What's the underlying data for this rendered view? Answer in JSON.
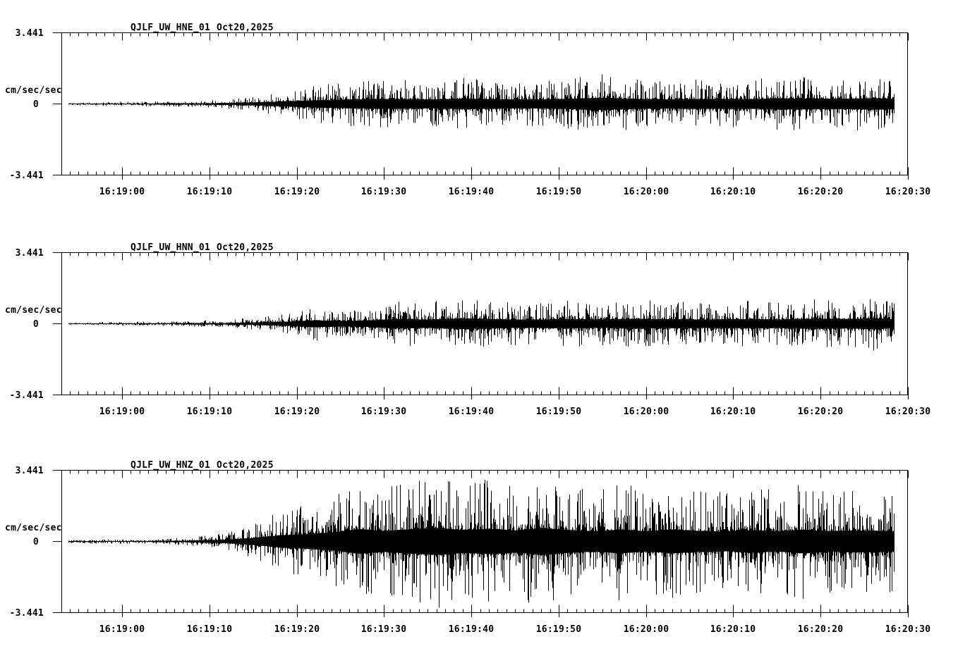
{
  "page": {
    "background": "#ffffff",
    "trace_color": "#000000",
    "text_color": "#000000"
  },
  "chart_data": {
    "type": "line",
    "kind": "seismogram-acceleration",
    "title_date": "Oct20,2025",
    "y_units": "cm/sec/sec",
    "y_max_label": "3.441",
    "y_zero_label": "0",
    "y_min_label": "-3.441",
    "ylim": [
      -3.441,
      3.441
    ],
    "grid": false,
    "x_axis": {
      "start_time": "16:18:53",
      "end_time": "16:20:30",
      "window_seconds": 96.95,
      "first_label_offset_s": 6.95,
      "major_step_s": 10,
      "minor_step_s": 1,
      "labels": [
        "16:19:00",
        "16:19:10",
        "16:19:20",
        "16:19:30",
        "16:19:40",
        "16:19:50",
        "16:20:00",
        "16:20:10",
        "16:20:20",
        "16:20:30"
      ]
    },
    "trace_window": {
      "start_s": 0.8,
      "end_s": 95.3
    },
    "panels": [
      {
        "station": "QJLF_UW_HNE_01",
        "date": "Oct20,2025",
        "envelope_cm_s2": [
          [
            0.8,
            0.07
          ],
          [
            7,
            0.1
          ],
          [
            14,
            0.15
          ],
          [
            18,
            0.22
          ],
          [
            22,
            0.38
          ],
          [
            26,
            0.65
          ],
          [
            30,
            0.95
          ],
          [
            34,
            1.15
          ],
          [
            38,
            1.2
          ],
          [
            42,
            1.1
          ],
          [
            46,
            1.3
          ],
          [
            50,
            1.15
          ],
          [
            54,
            1.1
          ],
          [
            58,
            1.25
          ],
          [
            62,
            1.5
          ],
          [
            66,
            1.2
          ],
          [
            70,
            1.15
          ],
          [
            74,
            1.25
          ],
          [
            78,
            1.15
          ],
          [
            82,
            1.35
          ],
          [
            86,
            1.3
          ],
          [
            90,
            1.25
          ],
          [
            93,
            1.4
          ],
          [
            95.3,
            1.3
          ]
        ]
      },
      {
        "station": "QJLF_UW_HNN_01",
        "date": "Oct20,2025",
        "envelope_cm_s2": [
          [
            0.8,
            0.07
          ],
          [
            7,
            0.1
          ],
          [
            14,
            0.13
          ],
          [
            18,
            0.18
          ],
          [
            22,
            0.3
          ],
          [
            26,
            0.5
          ],
          [
            29,
            0.85
          ],
          [
            32,
            0.65
          ],
          [
            35,
            0.8
          ],
          [
            38,
            1.15
          ],
          [
            42,
            1.05
          ],
          [
            46,
            1.3
          ],
          [
            50,
            1.1
          ],
          [
            54,
            1.0
          ],
          [
            58,
            1.15
          ],
          [
            62,
            1.05
          ],
          [
            66,
            1.2
          ],
          [
            70,
            1.1
          ],
          [
            74,
            1.05
          ],
          [
            78,
            1.15
          ],
          [
            82,
            1.05
          ],
          [
            86,
            1.25
          ],
          [
            90,
            1.15
          ],
          [
            93,
            1.35
          ],
          [
            95.3,
            1.1
          ]
        ]
      },
      {
        "station": "QJLF_UW_HNZ_01",
        "date": "Oct20,2025",
        "envelope_cm_s2": [
          [
            0.8,
            0.1
          ],
          [
            8,
            0.11
          ],
          [
            12,
            0.14
          ],
          [
            16,
            0.25
          ],
          [
            19,
            0.45
          ],
          [
            22,
            0.85
          ],
          [
            25,
            1.5
          ],
          [
            28,
            1.8
          ],
          [
            31,
            2.2
          ],
          [
            34,
            3.0
          ],
          [
            37,
            2.6
          ],
          [
            40,
            3.0
          ],
          [
            43,
            3.3
          ],
          [
            46,
            2.8
          ],
          [
            49,
            3.1
          ],
          [
            52,
            2.7
          ],
          [
            55,
            3.35
          ],
          [
            58,
            2.8
          ],
          [
            61,
            2.5
          ],
          [
            64,
            2.9
          ],
          [
            67,
            2.5
          ],
          [
            70,
            2.9
          ],
          [
            73,
            2.6
          ],
          [
            76,
            2.4
          ],
          [
            79,
            2.8
          ],
          [
            82,
            2.5
          ],
          [
            85,
            2.9
          ],
          [
            88,
            2.5
          ],
          [
            91,
            2.7
          ],
          [
            94,
            2.6
          ],
          [
            95.3,
            2.5
          ]
        ]
      }
    ]
  }
}
